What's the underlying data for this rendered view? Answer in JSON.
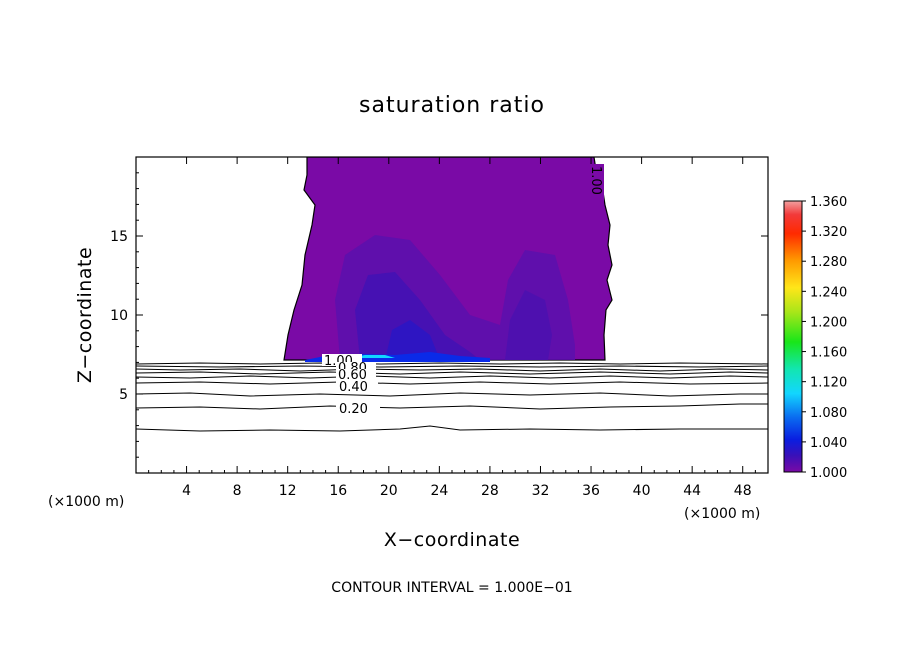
{
  "chart_data": {
    "type": "heatmap",
    "title": "saturation ratio",
    "xlabel": "X−coordinate",
    "ylabel": "Z−coordinate",
    "x_unit": "(×1000 m)",
    "y_unit": "(×1000 m)",
    "xlim": [
      0,
      50
    ],
    "ylim": [
      0,
      20
    ],
    "x_ticks": [
      4,
      8,
      12,
      16,
      20,
      24,
      28,
      32,
      36,
      40,
      44,
      48
    ],
    "x_tick_labels": [
      "4",
      "8",
      "12",
      "16",
      "20",
      "24",
      "28",
      "32",
      "36",
      "40",
      "44",
      "48"
    ],
    "y_ticks": [
      5,
      10,
      15
    ],
    "y_tick_labels": [
      "5",
      "10",
      "15"
    ],
    "colorbar": {
      "min": 1.0,
      "max": 1.36,
      "tick_labels": [
        "1.360",
        "1.320",
        "1.280",
        "1.240",
        "1.200",
        "1.160",
        "1.120",
        "1.080",
        "1.040",
        "1.000"
      ]
    },
    "filled_region": {
      "x_range": [
        11.8,
        37.0
      ],
      "z_range": [
        7.2,
        20
      ],
      "dominant_value": 1.0
    },
    "contour_lines": [
      {
        "label": "0.20",
        "z": 4.2
      },
      {
        "label": "0.40",
        "z": 5.3
      },
      {
        "label": "0.60",
        "z": 5.95
      },
      {
        "label": "0.80",
        "z": 6.35
      },
      {
        "label": "1.00",
        "z": 7.05
      }
    ],
    "contour_label_top": "1.00",
    "contour_interval_text": "CONTOUR INTERVAL = 1.000E−01"
  }
}
